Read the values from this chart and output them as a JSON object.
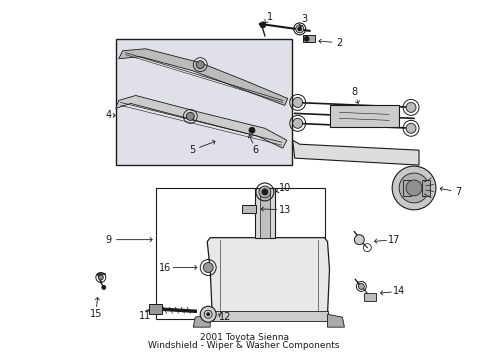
{
  "title": "2001 Toyota Sienna\nWindshield - Wiper & Washer Components",
  "bg_color": "#ffffff",
  "fig_width": 4.89,
  "fig_height": 3.6,
  "dpi": 100,
  "dark": "#1a1a1a",
  "gray": "#888888",
  "lt_gray": "#d8d8d8",
  "box_fill": "#e0e0e8"
}
